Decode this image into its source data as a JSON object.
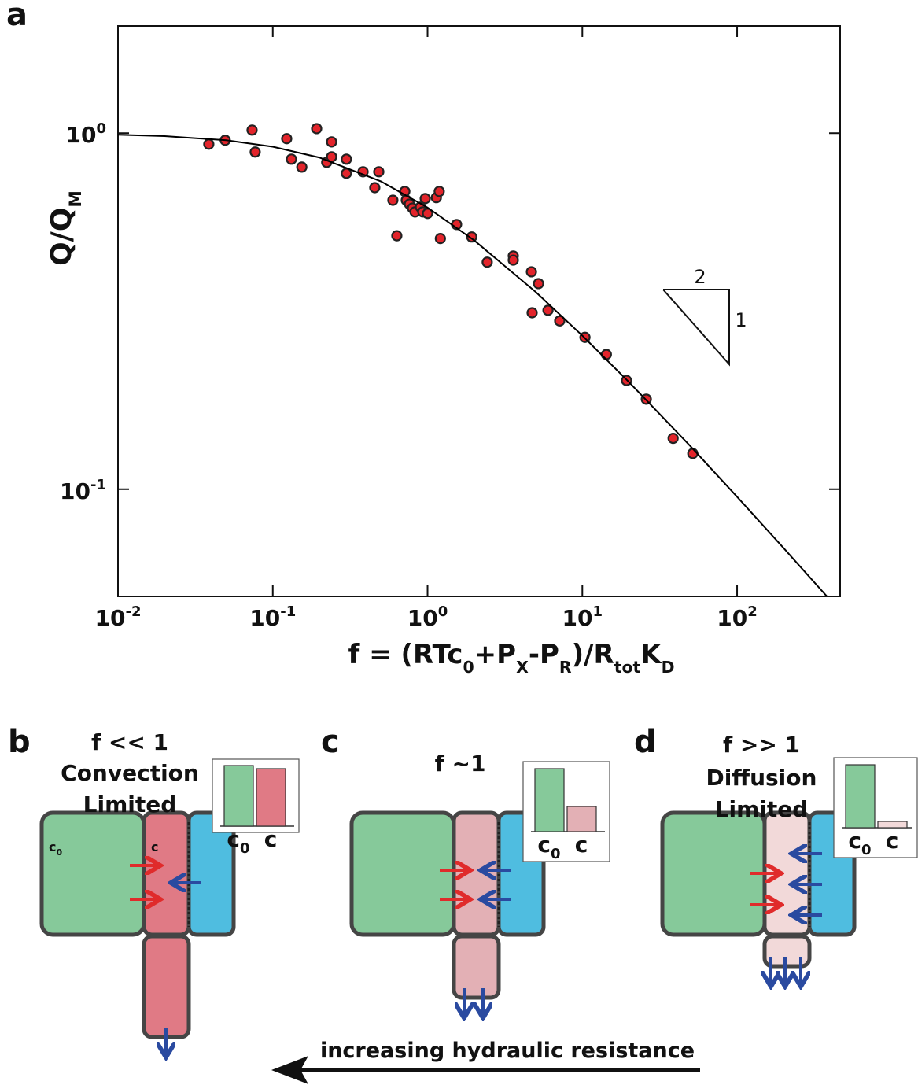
{
  "chart_data": {
    "type": "scatter",
    "panel_label": "a",
    "xlabel": [
      "f = (RTc",
      "0",
      "+P",
      "X",
      "-P",
      "R",
      ")/R",
      "tot",
      "K",
      "D"
    ],
    "ylabel": [
      "Q/Q",
      "M"
    ],
    "log_x": true,
    "log_y": true,
    "xlim": [
      0.01,
      463
    ],
    "ylim": [
      0.05,
      2.0
    ],
    "xticks": [
      {
        "value": 0.01,
        "label": "10",
        "exp": "-2"
      },
      {
        "value": 0.1,
        "label": "10",
        "exp": "-1"
      },
      {
        "value": 1,
        "label": "10",
        "exp": "0"
      },
      {
        "value": 10,
        "label": "10",
        "exp": "1"
      },
      {
        "value": 100,
        "label": "10",
        "exp": "2"
      }
    ],
    "yticks": [
      {
        "value": 0.1,
        "label": "10",
        "exp": "-1"
      },
      {
        "value": 1,
        "label": "10",
        "exp": "0"
      }
    ],
    "series": [
      {
        "type": "scatter",
        "color": "#e3242b",
        "x": [
          0.0386,
          0.0493,
          0.0735,
          0.077,
          0.123,
          0.132,
          0.154,
          0.192,
          0.223,
          0.24,
          0.24,
          0.299,
          0.299,
          0.383,
          0.456,
          0.484,
          0.597,
          0.633,
          0.713,
          0.729,
          0.764,
          0.8,
          0.83,
          0.9,
          0.932,
          0.966,
          1.0,
          1.14,
          1.19,
          1.21,
          1.54,
          1.93,
          2.43,
          3.58,
          3.58,
          4.69,
          4.74,
          5.21,
          6.0,
          7.14,
          10.4,
          14.3,
          19.3,
          25.9,
          38.6,
          51.7
        ],
        "values": [
          0.931,
          0.955,
          1.02,
          0.885,
          0.965,
          0.845,
          0.803,
          1.03,
          0.828,
          0.945,
          0.858,
          0.845,
          0.771,
          0.779,
          0.703,
          0.779,
          0.648,
          0.515,
          0.686,
          0.648,
          0.632,
          0.616,
          0.601,
          0.62,
          0.601,
          0.655,
          0.595,
          0.659,
          0.686,
          0.506,
          0.554,
          0.511,
          0.434,
          0.452,
          0.44,
          0.408,
          0.313,
          0.378,
          0.318,
          0.297,
          0.267,
          0.239,
          0.202,
          0.179,
          0.139,
          0.126
        ]
      },
      {
        "type": "line",
        "color": "#000000",
        "x": [
          0.01,
          0.02,
          0.05,
          0.1,
          0.2,
          0.5,
          1,
          2,
          5,
          10,
          20,
          50,
          100,
          200,
          400
        ],
        "values": [
          0.99,
          0.981,
          0.955,
          0.916,
          0.854,
          0.732,
          0.618,
          0.5,
          0.358,
          0.27,
          0.2,
          0.132,
          0.0952,
          0.0683,
          0.0488
        ]
      }
    ],
    "slope_labels": [
      "2",
      "1"
    ]
  },
  "diagrams": [
    {
      "label": "b",
      "title": [
        "f << 1",
        "Convection",
        "Limited"
      ],
      "bar_labels": [
        {
          "text": "c",
          "sub": "0"
        },
        {
          "text": "c"
        }
      ],
      "chamber_labels": [
        {
          "text": "c",
          "sub": "0"
        },
        {
          "text": "c"
        }
      ]
    },
    {
      "label": "c",
      "title": [
        "f ~1"
      ],
      "bar_labels": [
        {
          "text": "c",
          "sub": "0"
        },
        {
          "text": "c"
        }
      ]
    },
    {
      "label": "d",
      "title": [
        "f >> 1",
        "Diffusion",
        "Limited"
      ],
      "bar_labels": [
        {
          "text": "c",
          "sub": "0"
        },
        {
          "text": "c"
        }
      ]
    }
  ],
  "arrow_label": "increasing hydraulic resistance"
}
